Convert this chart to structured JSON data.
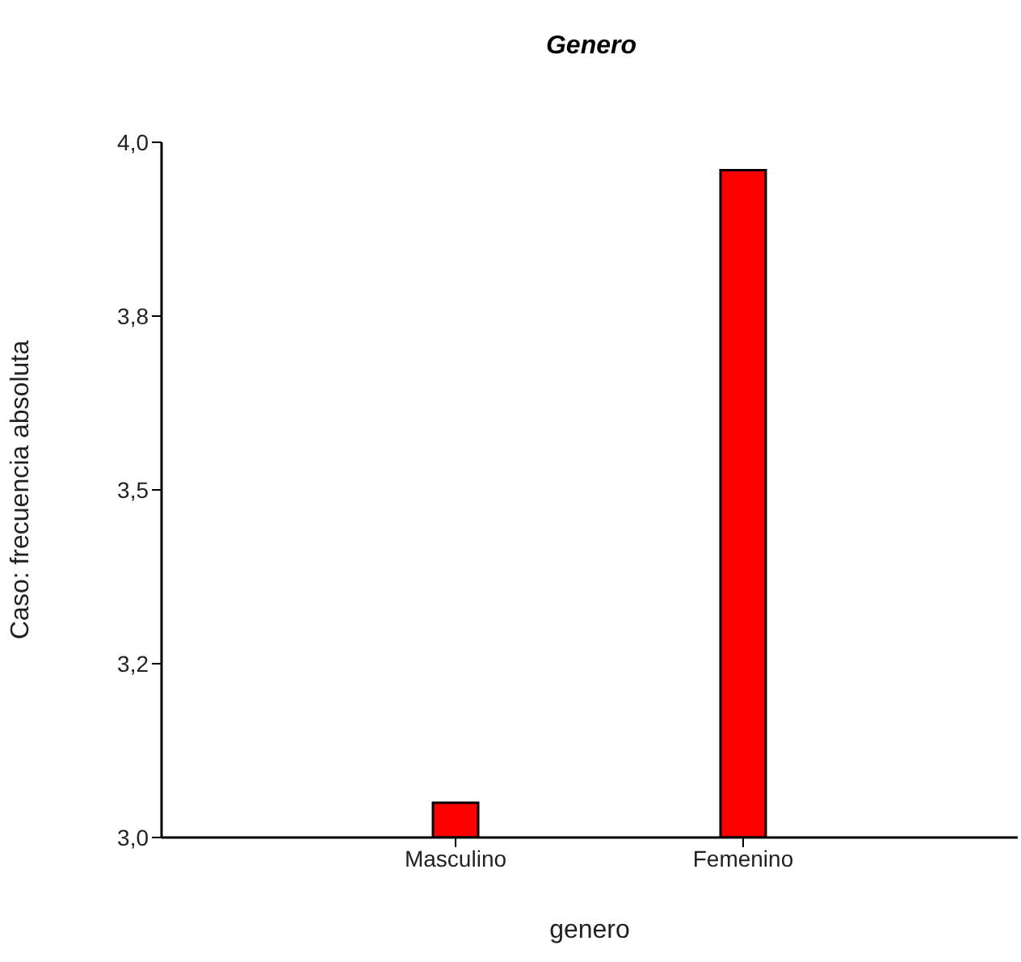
{
  "chart_data": {
    "type": "bar",
    "title": "Genero",
    "xlabel": "genero",
    "ylabel": "Caso: frecuencia absoluta",
    "categories": [
      "Masculino",
      "Femenino"
    ],
    "values": [
      3.05,
      3.96
    ],
    "color": "#ff0000",
    "ylim": [
      3.0,
      4.0
    ],
    "yticks": [
      {
        "value": 3.0,
        "label": "3,0"
      },
      {
        "value": 3.25,
        "label": "3,2"
      },
      {
        "value": 3.5,
        "label": "3,5"
      },
      {
        "value": 3.75,
        "label": "3,8"
      },
      {
        "value": 4.0,
        "label": "4,0"
      }
    ],
    "grid": false
  }
}
